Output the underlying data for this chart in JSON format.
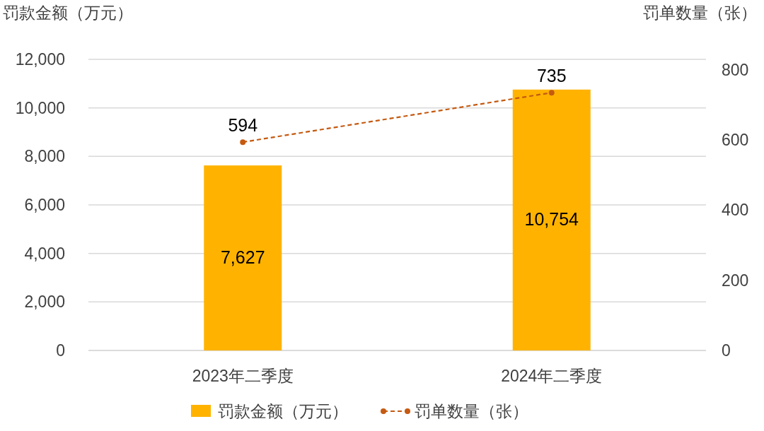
{
  "chart_data": {
    "type": "bar",
    "ylabel": "罚款金额（万元）",
    "y2label": "罚单数量（张）",
    "categories": [
      "2023年二季度",
      "2024年二季度"
    ],
    "series": [
      {
        "name": "罚款金额（万元）",
        "color": "#ffb300",
        "values": [
          7627,
          10754
        ],
        "value_labels": [
          "7,627",
          "10,754"
        ]
      },
      {
        "name": "罚单数量（张）",
        "type": "line",
        "axis": "y2",
        "color": "#c55a11",
        "values": [
          594,
          735
        ],
        "value_labels": [
          "594",
          "735"
        ]
      }
    ],
    "marker": "circle",
    "line_style": "dashed",
    "ylim": [
      0,
      12000
    ],
    "yticks": [
      {
        "value": 0,
        "label": "0"
      },
      {
        "value": 2000,
        "label": "2,000"
      },
      {
        "value": 4000,
        "label": "4,000"
      },
      {
        "value": 6000,
        "label": "6,000"
      },
      {
        "value": 8000,
        "label": "8,000"
      },
      {
        "value": 10000,
        "label": "10,000"
      },
      {
        "value": 12000,
        "label": "12,000"
      }
    ],
    "y2lim": [
      0,
      830
    ],
    "y2ticks": [
      0,
      200,
      400,
      600,
      800
    ],
    "grid": "y",
    "legend": "bottom"
  }
}
